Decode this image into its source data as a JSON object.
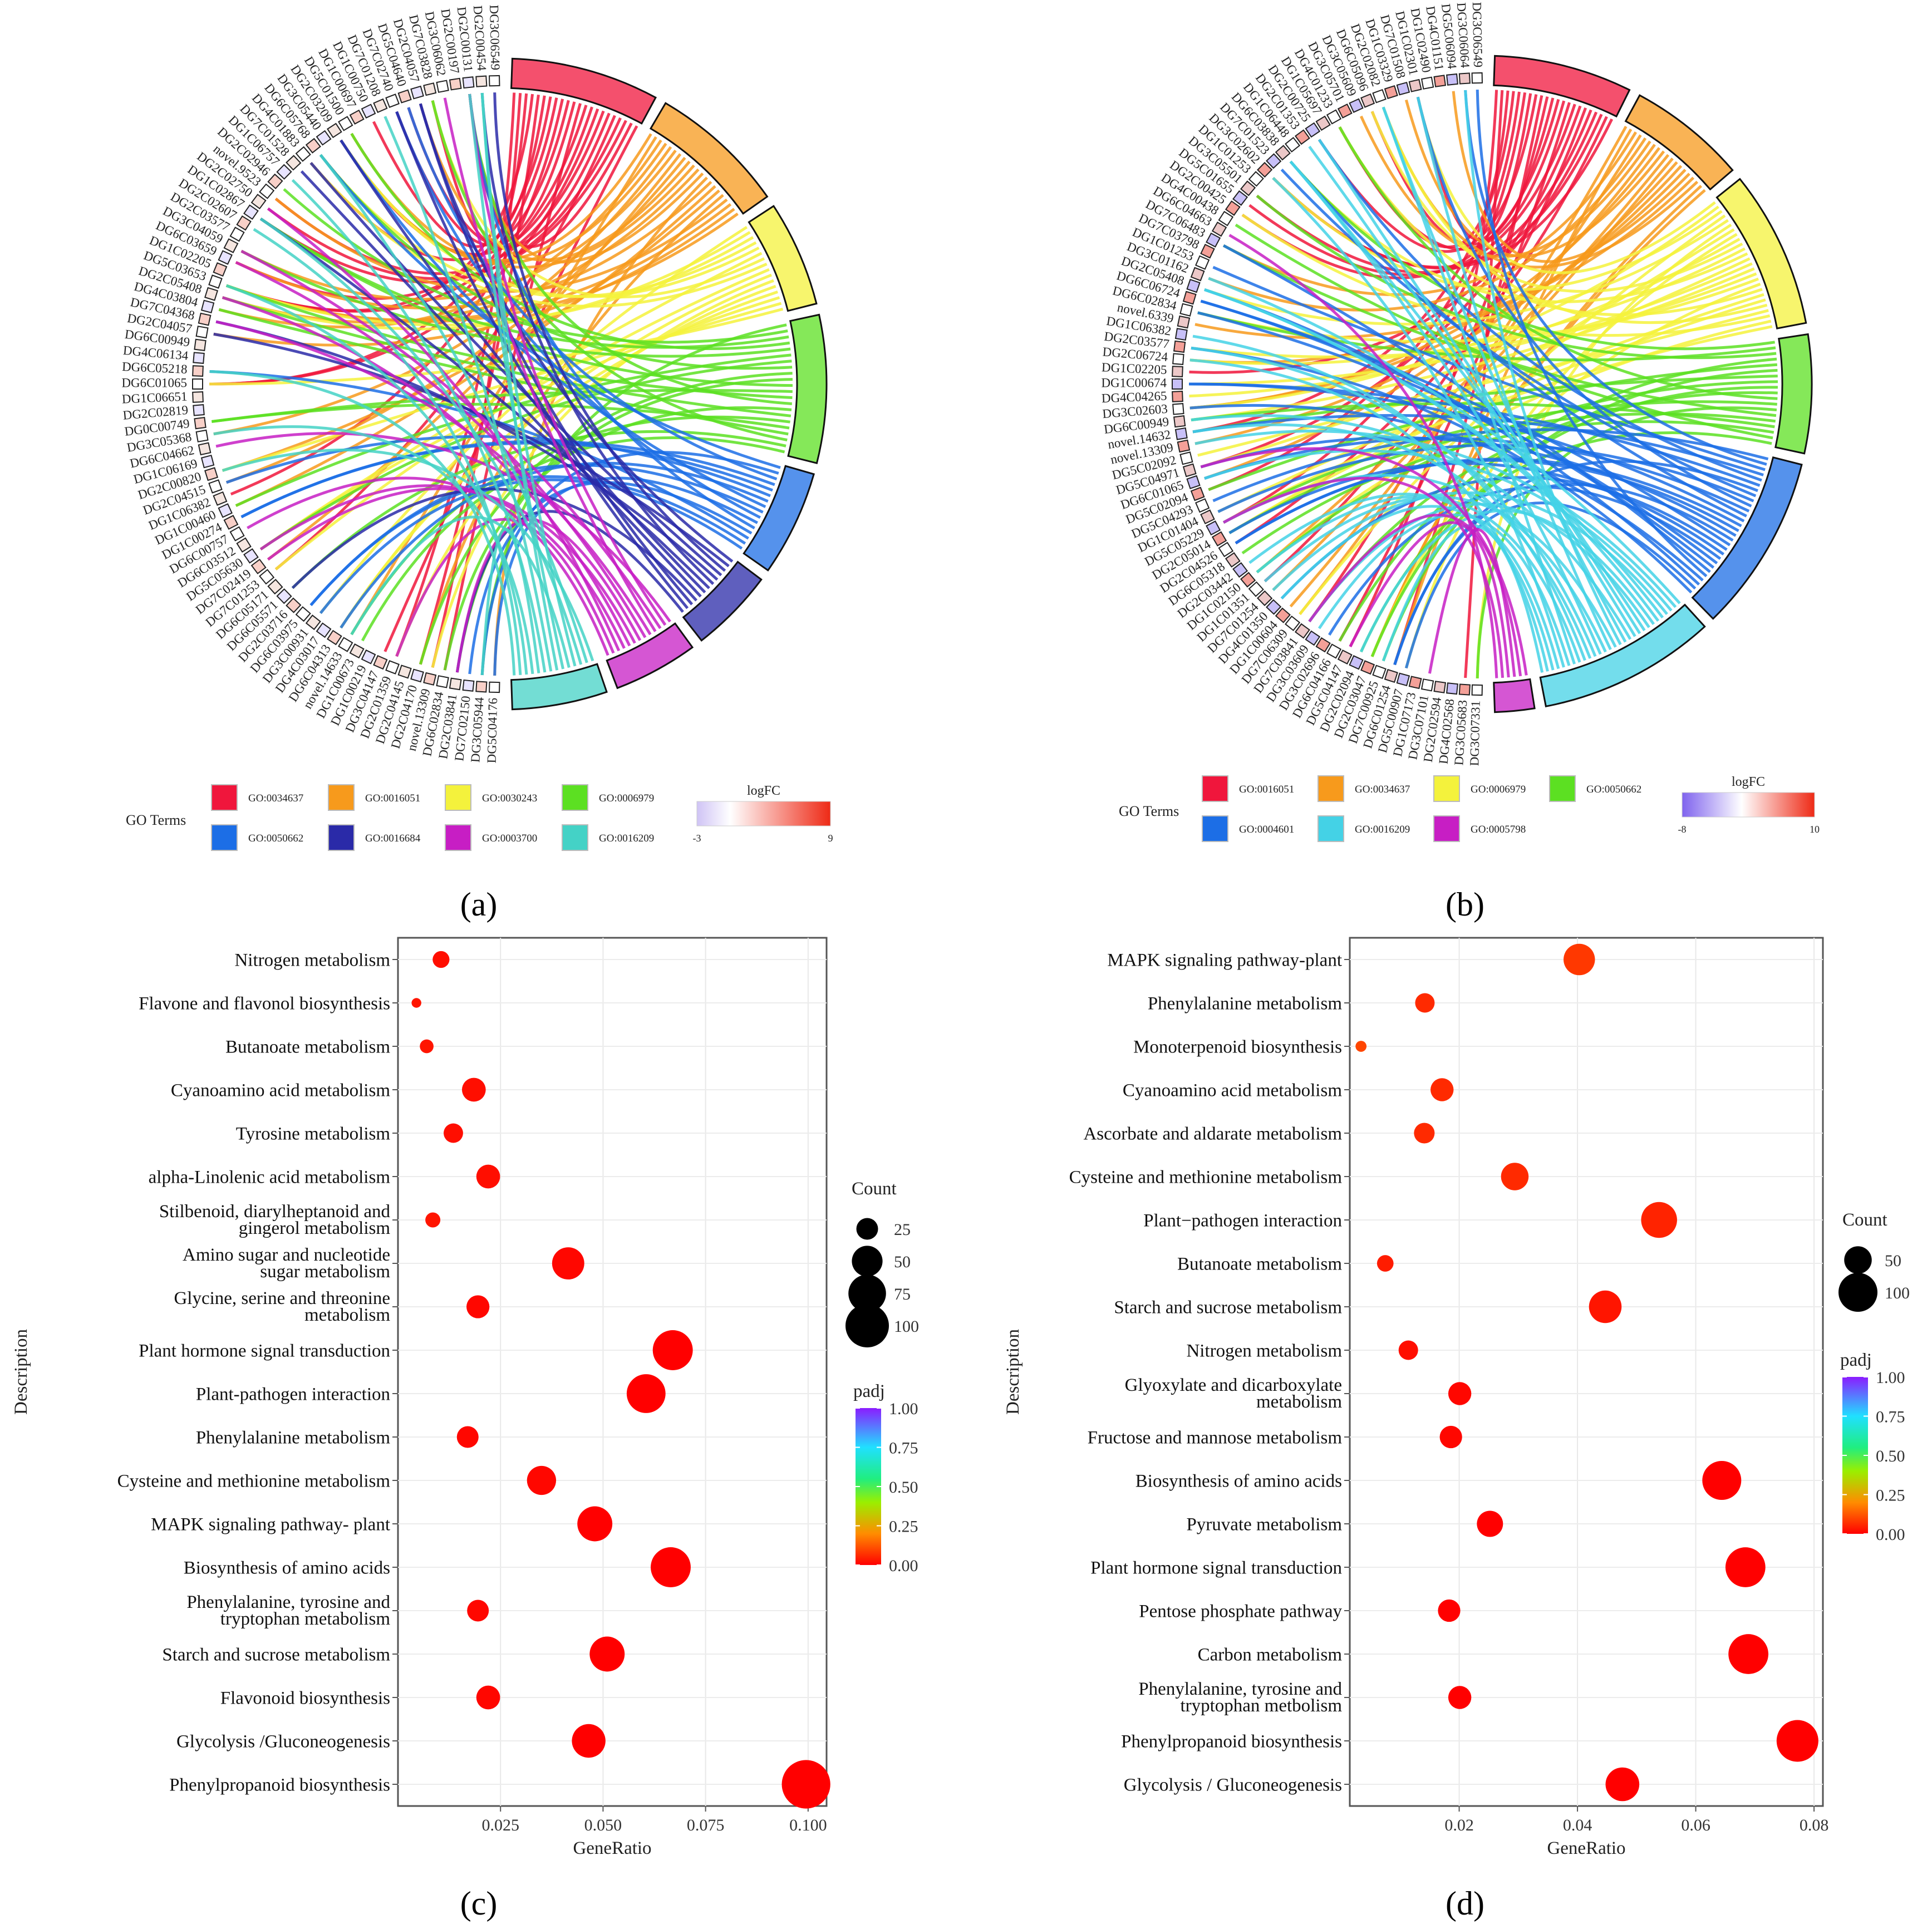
{
  "panels": [
    {
      "id": "a",
      "label": "(a)",
      "chart_data": {
        "type": "chord",
        "legend_title": "GO Terms",
        "terms": [
          {
            "id": "GO:0034637",
            "color": "#f0163c"
          },
          {
            "id": "GO:0016051",
            "color": "#f79a1c"
          },
          {
            "id": "GO:0030243",
            "color": "#f4f23c"
          },
          {
            "id": "GO:0006979",
            "color": "#5ce022"
          },
          {
            "id": "GO:0050662",
            "color": "#1c6ee6"
          },
          {
            "id": "GO:0016684",
            "color": "#2a2aa8"
          },
          {
            "id": "GO:0003700",
            "color": "#c71ec4"
          },
          {
            "id": "GO:0016209",
            "color": "#44d2c6"
          }
        ],
        "logfc_title": "logFC",
        "logfc_min": "-3",
        "logfc_max": "9",
        "genes": [
          "DG3C06549",
          "DG2C00454",
          "DG2C00131",
          "DG2C00197",
          "DG3C06062",
          "DG7C03828",
          "DG2C04057",
          "DG5C04640",
          "DG7C02740",
          "DG7C01208",
          "DG1C00750",
          "DG1C00697",
          "DG5C01500",
          "DG2C03209",
          "DG3C05440",
          "DG6C05768",
          "DG4C01883",
          "DG7C01528",
          "DG1C06757",
          "DG2C02946",
          "novel.9523",
          "DG2C02750",
          "DG1C02867",
          "DG2C02607",
          "DG2C03577",
          "DG3C04059",
          "DG6C03659",
          "DG1C02205",
          "DG5C03653",
          "DG2C05408",
          "DG4C03804",
          "DG7C04368",
          "DG2C04057",
          "DG6C00949",
          "DG4C06134",
          "DG6C05218",
          "DG6C01065",
          "DG1C06651",
          "DG2C02819",
          "DG0C00749",
          "DG3C05368",
          "DG6C04662",
          "DG1C06169",
          "DG2C00820",
          "DG2C04515",
          "DG1C06382",
          "DG1C00460",
          "DG1C00274",
          "DG6C00757",
          "DG6C03512",
          "DG5C05630",
          "DG7C02419",
          "DG7C01253",
          "DG6C05171",
          "DG6C05571",
          "DG2C03716",
          "DG6C03975",
          "DG3C00931",
          "DG4C03017",
          "DG6C04313",
          "novel.14633",
          "DG1C00673",
          "DG1C00219",
          "DG3C04147",
          "DG2C01359",
          "DG2C04145",
          "DG2C04170",
          "novel.13309",
          "DG6C02834",
          "DG2C03841",
          "DG7C02150",
          "DG3C05944",
          "DG5C04176"
        ]
      }
    },
    {
      "id": "b",
      "label": "(b)",
      "chart_data": {
        "type": "chord",
        "legend_title": "GO Terms",
        "terms": [
          {
            "id": "GO:0016051",
            "color": "#f0163c"
          },
          {
            "id": "GO:0034637",
            "color": "#f79a1c"
          },
          {
            "id": "GO:0006979",
            "color": "#f4f23c"
          },
          {
            "id": "GO:0050662",
            "color": "#5ce022"
          },
          {
            "id": "GO:0004601",
            "color": "#1c6ee6"
          },
          {
            "id": "GO:0016209",
            "color": "#44d2e6"
          },
          {
            "id": "GO:0005798",
            "color": "#c71ec4"
          }
        ],
        "logfc_title": "logFC",
        "logfc_min": "-8",
        "logfc_max": "10",
        "genes": [
          "DG3C06549",
          "DG3C06064",
          "DG5C06094",
          "DG4C01151",
          "DG1C02490",
          "DG1C02301",
          "DG7C01508",
          "DG1C03329",
          "DG2C02082",
          "DG6C05096",
          "DG3C05609",
          "DG3C05701",
          "DG4C01233",
          "DG1C05697",
          "DG2C00725",
          "DG2C01353",
          "DG1C06448",
          "DG6C03838",
          "DG7C01523",
          "DG3C02602",
          "DG1C01253",
          "DG3C05501",
          "DG5C01655",
          "DG2C00425",
          "DG4C00438",
          "DG6C04663",
          "DG7C06483",
          "DG7C03798",
          "DG1C01253",
          "DG3C01162",
          "DG2C05408",
          "DG6C06724",
          "DG6C02834",
          "novel.6339",
          "DG1C06382",
          "DG2C03577",
          "DG2C06724",
          "DG1C02205",
          "DG1C00674",
          "DG4C04265",
          "DG3C02603",
          "DG6C00949",
          "novel.14632",
          "novel.13309",
          "DG5C02092",
          "DG5C04971",
          "DG6C01065",
          "DG5C02094",
          "DG5C04293",
          "DG1C01404",
          "DG5C05229",
          "DG2C05014",
          "DG2C04526",
          "DG6C05318",
          "DG2C03442",
          "DG1C02150",
          "DG1C01351",
          "DG7C01254",
          "DG4C01350",
          "DG1C00604",
          "DG7C06309",
          "DG7C03841",
          "DG3C03609",
          "DG3C02696",
          "DG6C04166",
          "DG5C04147",
          "DG2C02094",
          "DG2C03047",
          "DG7C00925",
          "DG6C01254",
          "DG5C00907",
          "DG1C07173",
          "DG3C07101",
          "DG2C02594",
          "DG4C02568",
          "DG3C05683",
          "DG3C07331"
        ]
      }
    },
    {
      "id": "c",
      "label": "(c)",
      "chart_data": {
        "type": "scatter",
        "xlabel": "GeneRatio",
        "ylabel": "Description",
        "xlim": [
          0.0,
          0.1045
        ],
        "xticks": [
          {
            "v": 0.025,
            "t": "0.025"
          },
          {
            "v": 0.05,
            "t": "0.050"
          },
          {
            "v": 0.075,
            "t": "0.075"
          },
          {
            "v": 0.1,
            "t": "0.100"
          }
        ],
        "count_title": "Count",
        "count_legend": [
          25,
          50,
          75,
          100
        ],
        "padj_title": "padj",
        "padj_ticks": [
          "1.00",
          "0.75",
          "0.50",
          "0.25",
          "0.00"
        ],
        "points": [
          {
            "label": [
              "Nitrogen metabolism"
            ],
            "x": 0.0105,
            "count": 15,
            "padj": 0.02
          },
          {
            "label": [
              "Flavone and flavonol biosynthesis"
            ],
            "x": 0.0045,
            "count": 5,
            "padj": 0.03
          },
          {
            "label": [
              "Butanoate metabolism"
            ],
            "x": 0.007,
            "count": 10,
            "padj": 0.03
          },
          {
            "label": [
              "Cyanoamino acid metabolism"
            ],
            "x": 0.0185,
            "count": 30,
            "padj": 0.02
          },
          {
            "label": [
              "Tyrosine metabolism"
            ],
            "x": 0.0135,
            "count": 20,
            "padj": 0.02
          },
          {
            "label": [
              "alpha-Linolenic acid metabolism"
            ],
            "x": 0.022,
            "count": 30,
            "padj": 0.02
          },
          {
            "label": [
              "Stilbenoid, diarylheptanoid and",
              "gingerol metabolism"
            ],
            "x": 0.0085,
            "count": 12,
            "padj": 0.03
          },
          {
            "label": [
              "Amino sugar and nucleotide",
              "sugar metabolism"
            ],
            "x": 0.0415,
            "count": 55,
            "padj": 0.01
          },
          {
            "label": [
              "Glycine, serine and threonine",
              "metabolism"
            ],
            "x": 0.0195,
            "count": 28,
            "padj": 0.01
          },
          {
            "label": [
              "Plant hormone signal transduction"
            ],
            "x": 0.067,
            "count": 85,
            "padj": 0.0
          },
          {
            "label": [
              "Plant-pathogen interaction"
            ],
            "x": 0.0605,
            "count": 80,
            "padj": 0.0
          },
          {
            "label": [
              "Phenylalanine metabolism"
            ],
            "x": 0.017,
            "count": 25,
            "padj": 0.01
          },
          {
            "label": [
              "Cysteine and methionine metabolism"
            ],
            "x": 0.035,
            "count": 45,
            "padj": 0.01
          },
          {
            "label": [
              "MAPK signaling pathway- plant"
            ],
            "x": 0.048,
            "count": 65,
            "padj": 0.0
          },
          {
            "label": [
              "Biosynthesis of amino acids"
            ],
            "x": 0.0665,
            "count": 85,
            "padj": 0.0
          },
          {
            "label": [
              "Phenylalanine, tyrosine and",
              "tryptophan metabolism"
            ],
            "x": 0.0195,
            "count": 25,
            "padj": 0.01
          },
          {
            "label": [
              "Starch and sucrose metabolism"
            ],
            "x": 0.051,
            "count": 65,
            "padj": 0.0
          },
          {
            "label": [
              "Flavonoid biosynthesis"
            ],
            "x": 0.022,
            "count": 30,
            "padj": 0.01
          },
          {
            "label": [
              "Glycolysis /Gluconeogenesis"
            ],
            "x": 0.0465,
            "count": 60,
            "padj": 0.0
          },
          {
            "label": [
              "Phenylpropanoid biosynthesis"
            ],
            "x": 0.0995,
            "count": 125,
            "padj": 0.0
          }
        ]
      }
    },
    {
      "id": "d",
      "label": "(d)",
      "chart_data": {
        "type": "scatter",
        "xlabel": "GeneRatio",
        "ylabel": "Description",
        "xlim": [
          0.0015,
          0.0815
        ],
        "xticks": [
          {
            "v": 0.02,
            "t": "0.02"
          },
          {
            "v": 0.04,
            "t": "0.04"
          },
          {
            "v": 0.06,
            "t": "0.06"
          },
          {
            "v": 0.08,
            "t": "0.08"
          }
        ],
        "count_title": "Count",
        "count_legend": [
          50,
          100
        ],
        "padj_title": "padj",
        "padj_ticks": [
          "1.00",
          "0.75",
          "0.50",
          "0.25",
          "0.00"
        ],
        "points": [
          {
            "label": [
              "MAPK signaling pathway-plant"
            ],
            "x": 0.0403,
            "count": 65,
            "padj": 0.08
          },
          {
            "label": [
              "Phenylalanine metabolism"
            ],
            "x": 0.0142,
            "count": 25,
            "padj": 0.06
          },
          {
            "label": [
              "Monoterpenoid biosynthesis"
            ],
            "x": 0.0034,
            "count": 8,
            "padj": 0.1
          },
          {
            "label": [
              "Cyanoamino acid metabolism"
            ],
            "x": 0.0171,
            "count": 35,
            "padj": 0.06
          },
          {
            "label": [
              "Ascorbate and aldarate metabolism"
            ],
            "x": 0.0141,
            "count": 28,
            "padj": 0.06
          },
          {
            "label": [
              "Cysteine and methionine metabolism"
            ],
            "x": 0.0294,
            "count": 50,
            "padj": 0.06
          },
          {
            "label": [
              "Plant−pathogen interaction"
            ],
            "x": 0.0538,
            "count": 85,
            "padj": 0.05
          },
          {
            "label": [
              "Butanoate metabolism"
            ],
            "x": 0.0075,
            "count": 18,
            "padj": 0.04
          },
          {
            "label": [
              "Starch and sucrose metabolism"
            ],
            "x": 0.0447,
            "count": 70,
            "padj": 0.03
          },
          {
            "label": [
              "Nitrogen metabolism"
            ],
            "x": 0.0114,
            "count": 25,
            "padj": 0.02
          },
          {
            "label": [
              "Glyoxylate and dicarboxylate",
              "metabolism"
            ],
            "x": 0.0201,
            "count": 35,
            "padj": 0.01
          },
          {
            "label": [
              "Fructose and mannose metabolism"
            ],
            "x": 0.0186,
            "count": 33,
            "padj": 0.01
          },
          {
            "label": [
              "Biosynthesis of amino acids"
            ],
            "x": 0.0644,
            "count": 100,
            "padj": 0.0
          },
          {
            "label": [
              "Pyruvate metabolism"
            ],
            "x": 0.0252,
            "count": 45,
            "padj": 0.0
          },
          {
            "label": [
              "Plant hormone signal transduction"
            ],
            "x": 0.0684,
            "count": 105,
            "padj": 0.0
          },
          {
            "label": [
              "Pentose phosphate pathway"
            ],
            "x": 0.0183,
            "count": 33,
            "padj": 0.0
          },
          {
            "label": [
              "Carbon metabolism"
            ],
            "x": 0.0689,
            "count": 105,
            "padj": 0.0
          },
          {
            "label": [
              "Phenylalanine, tyrosine and",
              "tryptophan metbolism"
            ],
            "x": 0.0201,
            "count": 35,
            "padj": 0.0
          },
          {
            "label": [
              "Phenylpropanoid biosynthesis"
            ],
            "x": 0.0772,
            "count": 115,
            "padj": 0.0
          },
          {
            "label": [
              "Glycolysis / Gluconeogenesis"
            ],
            "x": 0.0476,
            "count": 75,
            "padj": 0.0
          }
        ]
      }
    }
  ]
}
